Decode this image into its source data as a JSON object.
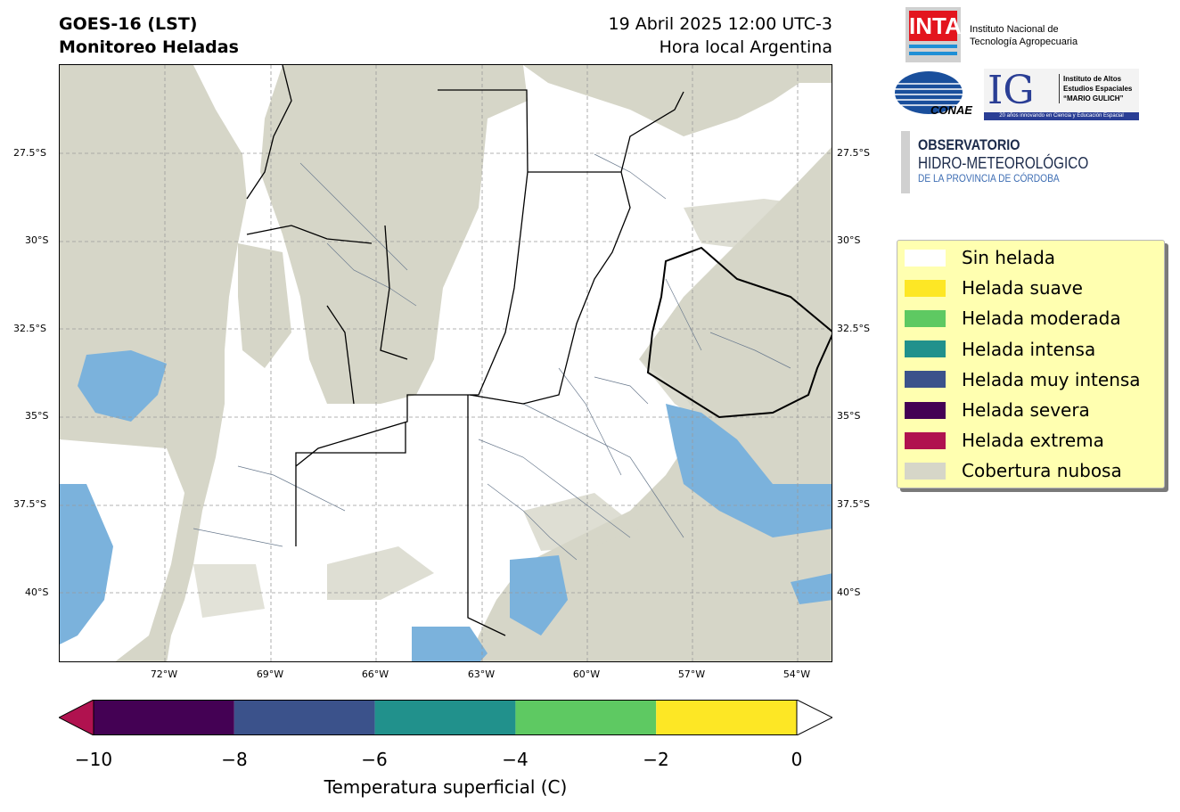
{
  "header": {
    "title_line1": "GOES-16 (LST)",
    "title_line2": "Monitoreo Heladas",
    "date_line1": "19 Abril 2025 12:00 UTC-3",
    "date_line2": "Hora local Argentina"
  },
  "map": {
    "lat_ticks": [
      "27.5°S",
      "30°S",
      "32.5°S",
      "35°S",
      "37.5°S",
      "40°S"
    ],
    "lon_ticks": [
      "72°W",
      "69°W",
      "66°W",
      "63°W",
      "60°W",
      "57°W",
      "54°W"
    ],
    "colors": {
      "ocean": "#d6d6c8",
      "cloud": "#d6d6c8",
      "no_frost": "#ffffff",
      "water_blue": "#7bb2dc",
      "border": "#000000",
      "district": "#6a7a8e"
    }
  },
  "logos": {
    "inta_mark": "INTA",
    "inta_line1": "Instituto Nacional de",
    "inta_line2": "Tecnología Agropecuaria",
    "conae_mark": "CONAE",
    "ig_mark": "IG",
    "ig_line1": "Instituto de Altos",
    "ig_line2": "Estudios Espaciales",
    "ig_line3": "“MARIO GULICH”",
    "ig_tagline": "20 años innovando en Ciencia y Educación Espacial",
    "obs_line1": "OBSERVATORIO",
    "obs_line2": "HIDRO-METEOROLÓGICO",
    "obs_line3": "DE LA PROVINCIA DE CÓRDOBA"
  },
  "legend": {
    "items": [
      {
        "label": "Sin helada",
        "color": "#ffffff"
      },
      {
        "label": "Helada suave",
        "color": "#fde725"
      },
      {
        "label": "Helada moderada",
        "color": "#5ec962"
      },
      {
        "label": "Helada intensa",
        "color": "#21918c"
      },
      {
        "label": "Helada muy intensa",
        "color": "#3b528b"
      },
      {
        "label": "Helada severa",
        "color": "#440154"
      },
      {
        "label": "Helada extrema",
        "color": "#b0124f"
      },
      {
        "label": "Cobertura nubosa",
        "color": "#d6d6c8"
      }
    ]
  },
  "colorbar": {
    "ticks": [
      "−10",
      "−8",
      "−6",
      "−4",
      "−2",
      "0"
    ],
    "label": "Temperatura superficial (C)",
    "segments": [
      "#440154",
      "#3b528b",
      "#21918c",
      "#5ec962",
      "#fde725"
    ],
    "under_color": "#b0124f",
    "over_color": "#ffffff"
  }
}
